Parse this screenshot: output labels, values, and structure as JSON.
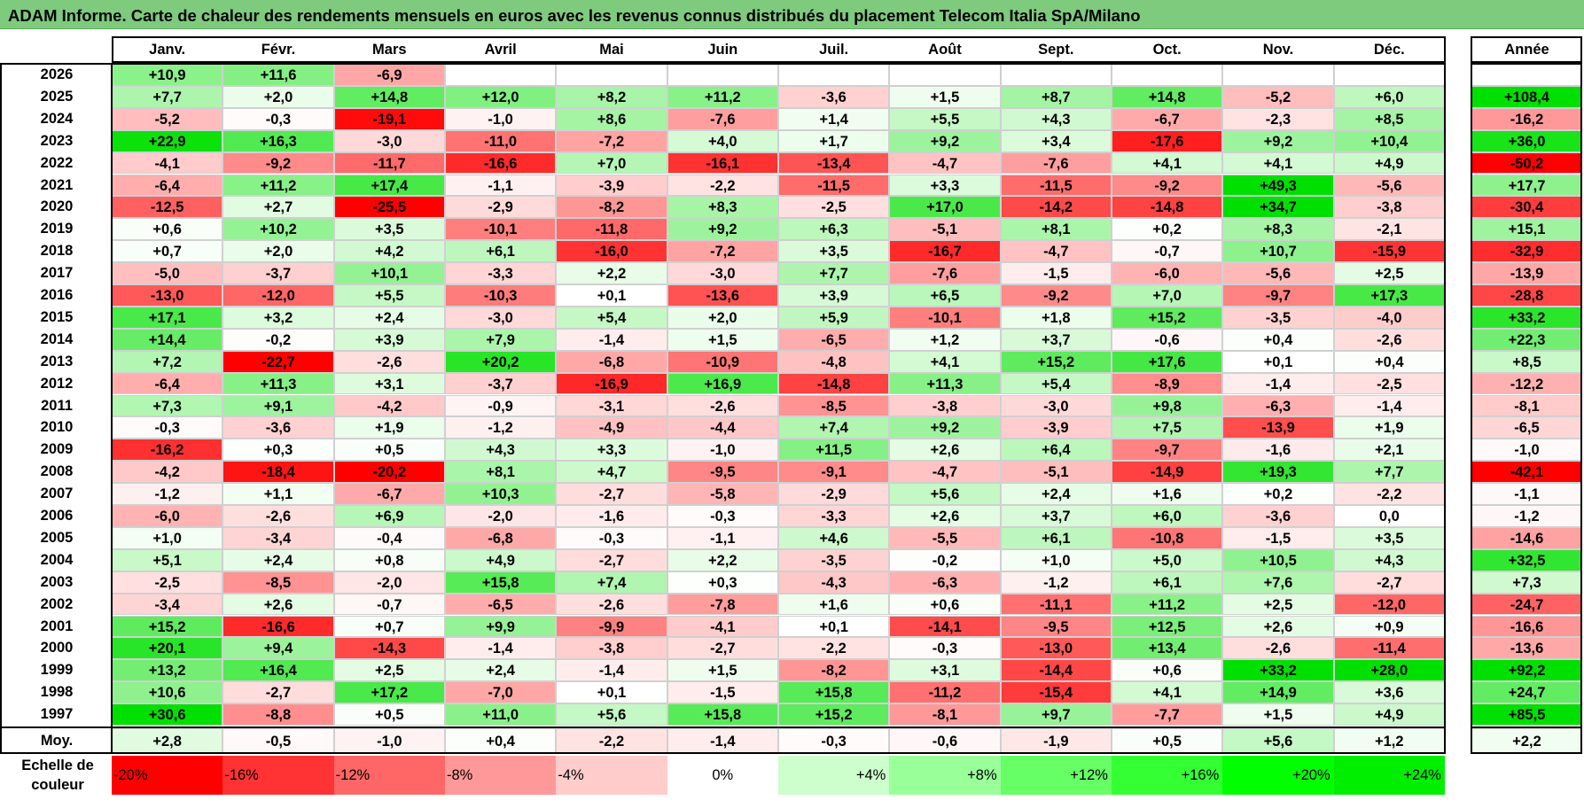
{
  "title": "ADAM Informe. Carte de chaleur des rendements mensuels en euros avec les revenus connus distribués du placement Telecom Italia SpA/Milano",
  "chart_data": {
    "type": "heatmap",
    "title": "ADAM Informe. Carte de chaleur des rendements mensuels en euros avec les revenus connus distribués du placement Telecom Italia SpA/Milano",
    "columns": [
      "Janv.",
      "Févr.",
      "Mars",
      "Avril",
      "Mai",
      "Juin",
      "Juil.",
      "Août",
      "Sept.",
      "Oct.",
      "Nov.",
      "Déc."
    ],
    "year_column_label": "Année",
    "rows": [
      {
        "year": "2026",
        "months": [
          "+10,9",
          "+11,6",
          "-6,9",
          "",
          "",
          "",
          "",
          "",
          "",
          "",
          "",
          ""
        ],
        "annual": ""
      },
      {
        "year": "2025",
        "months": [
          "+7,7",
          "+2,0",
          "+14,8",
          "+12,0",
          "+8,2",
          "+11,2",
          "-3,6",
          "+1,5",
          "+8,7",
          "+14,8",
          "-5,2",
          "+6,0"
        ],
        "annual": "+108,4"
      },
      {
        "year": "2024",
        "months": [
          "-5,2",
          "-0,3",
          "-19,1",
          "-1,0",
          "+8,6",
          "-7,6",
          "+1,4",
          "+5,5",
          "+4,3",
          "-6,7",
          "-2,3",
          "+8,5"
        ],
        "annual": "-16,2"
      },
      {
        "year": "2023",
        "months": [
          "+22,9",
          "+16,3",
          "-3,0",
          "-11,0",
          "-7,2",
          "+4,0",
          "+1,7",
          "+9,2",
          "+3,4",
          "-17,6",
          "+9,2",
          "+10,4"
        ],
        "annual": "+36,0"
      },
      {
        "year": "2022",
        "months": [
          "-4,1",
          "-9,2",
          "-11,7",
          "-16,6",
          "+7,0",
          "-16,1",
          "-13,4",
          "-4,7",
          "-7,6",
          "+4,1",
          "+4,1",
          "+4,9"
        ],
        "annual": "-50,2"
      },
      {
        "year": "2021",
        "months": [
          "-6,4",
          "+11,2",
          "+17,4",
          "-1,1",
          "-3,9",
          "-2,2",
          "-11,5",
          "+3,3",
          "-11,5",
          "-9,2",
          "+49,3",
          "-5,6"
        ],
        "annual": "+17,7"
      },
      {
        "year": "2020",
        "months": [
          "-12,5",
          "+2,7",
          "-25,5",
          "-2,9",
          "-8,2",
          "+8,3",
          "-2,5",
          "+17,0",
          "-14,2",
          "-14,8",
          "+34,7",
          "-3,8"
        ],
        "annual": "-30,4"
      },
      {
        "year": "2019",
        "months": [
          "+0,6",
          "+10,2",
          "+3,5",
          "-10,1",
          "-11,8",
          "+9,2",
          "+6,3",
          "-5,1",
          "+8,1",
          "+0,2",
          "+8,3",
          "-2,1"
        ],
        "annual": "+15,1"
      },
      {
        "year": "2018",
        "months": [
          "+0,7",
          "+2,0",
          "+4,2",
          "+6,1",
          "-16,0",
          "-7,2",
          "+3,5",
          "-16,7",
          "-4,7",
          "-0,7",
          "+10,7",
          "-15,9"
        ],
        "annual": "-32,9"
      },
      {
        "year": "2017",
        "months": [
          "-5,0",
          "-3,7",
          "+10,1",
          "-3,3",
          "+2,2",
          "-3,0",
          "+7,7",
          "-7,6",
          "-1,5",
          "-6,0",
          "-5,6",
          "+2,5"
        ],
        "annual": "-13,9"
      },
      {
        "year": "2016",
        "months": [
          "-13,0",
          "-12,0",
          "+5,5",
          "-10,3",
          "+0,1",
          "-13,6",
          "+3,9",
          "+6,5",
          "-9,2",
          "+7,0",
          "-9,7",
          "+17,3"
        ],
        "annual": "-28,8"
      },
      {
        "year": "2015",
        "months": [
          "+17,1",
          "+3,2",
          "+2,4",
          "-3,0",
          "+5,4",
          "+2,0",
          "+5,9",
          "-10,1",
          "+1,8",
          "+15,2",
          "-3,5",
          "-4,0"
        ],
        "annual": "+33,2"
      },
      {
        "year": "2014",
        "months": [
          "+14,4",
          "-0,2",
          "+3,9",
          "+7,9",
          "-1,4",
          "+1,5",
          "-6,5",
          "+1,2",
          "+3,7",
          "-0,6",
          "+0,4",
          "-2,6"
        ],
        "annual": "+22,3"
      },
      {
        "year": "2013",
        "months": [
          "+7,2",
          "-22,7",
          "-2,6",
          "+20,2",
          "-6,8",
          "-10,9",
          "-4,8",
          "+4,1",
          "+15,2",
          "+17,6",
          "+0,1",
          "+0,4"
        ],
        "annual": "+8,5"
      },
      {
        "year": "2012",
        "months": [
          "-6,4",
          "+11,3",
          "+3,1",
          "-3,7",
          "-16,9",
          "+16,9",
          "-14,8",
          "+11,3",
          "+5,4",
          "-8,9",
          "-1,4",
          "-2,5"
        ],
        "annual": "-12,2"
      },
      {
        "year": "2011",
        "months": [
          "+7,3",
          "+9,1",
          "-4,2",
          "-0,9",
          "-3,1",
          "-2,6",
          "-8,5",
          "-3,8",
          "-3,0",
          "+9,8",
          "-6,3",
          "-1,4"
        ],
        "annual": "-8,1"
      },
      {
        "year": "2010",
        "months": [
          "-0,3",
          "-3,6",
          "+1,9",
          "-1,2",
          "-4,9",
          "-4,4",
          "+7,4",
          "+9,2",
          "-3,9",
          "+7,5",
          "-13,9",
          "+1,9"
        ],
        "annual": "-6,5"
      },
      {
        "year": "2009",
        "months": [
          "-16,2",
          "+0,3",
          "+0,5",
          "+4,3",
          "+3,3",
          "-1,0",
          "+11,5",
          "+2,6",
          "+6,4",
          "-9,7",
          "-1,6",
          "+2,1"
        ],
        "annual": "-1,0"
      },
      {
        "year": "2008",
        "months": [
          "-4,2",
          "-18,4",
          "-20,2",
          "+8,1",
          "+4,7",
          "-9,5",
          "-9,1",
          "-4,7",
          "-5,1",
          "-14,9",
          "+19,3",
          "+7,7"
        ],
        "annual": "-42,1"
      },
      {
        "year": "2007",
        "months": [
          "-1,2",
          "+1,1",
          "-6,7",
          "+10,3",
          "-2,7",
          "-5,8",
          "-2,9",
          "+5,6",
          "+2,4",
          "+1,6",
          "+0,2",
          "-2,2"
        ],
        "annual": "-1,1"
      },
      {
        "year": "2006",
        "months": [
          "-6,0",
          "-2,6",
          "+6,9",
          "-2,0",
          "-1,6",
          "-0,3",
          "-3,3",
          "+2,6",
          "+3,7",
          "+6,0",
          "-3,6",
          "0,0"
        ],
        "annual": "-1,2"
      },
      {
        "year": "2005",
        "months": [
          "+1,0",
          "-3,4",
          "-0,4",
          "-6,8",
          "-0,3",
          "-1,1",
          "+4,6",
          "-5,5",
          "+6,1",
          "-10,8",
          "-1,5",
          "+3,5"
        ],
        "annual": "-14,6"
      },
      {
        "year": "2004",
        "months": [
          "+5,1",
          "+2,4",
          "+0,8",
          "+4,9",
          "-2,7",
          "+2,2",
          "-3,5",
          "-0,2",
          "+1,0",
          "+5,0",
          "+10,5",
          "+4,3"
        ],
        "annual": "+32,5"
      },
      {
        "year": "2003",
        "months": [
          "-2,5",
          "-8,5",
          "-2,0",
          "+15,8",
          "+7,4",
          "+0,3",
          "-4,3",
          "-6,3",
          "-1,2",
          "+6,1",
          "+7,6",
          "-2,7"
        ],
        "annual": "+7,3"
      },
      {
        "year": "2002",
        "months": [
          "-3,4",
          "+2,6",
          "-0,7",
          "-6,5",
          "-2,6",
          "-7,8",
          "+1,6",
          "+0,6",
          "-11,1",
          "+11,2",
          "+2,5",
          "-12,0"
        ],
        "annual": "-24,7"
      },
      {
        "year": "2001",
        "months": [
          "+15,2",
          "-16,6",
          "+0,7",
          "+9,9",
          "-9,9",
          "-4,1",
          "+0,1",
          "-14,1",
          "-9,5",
          "+12,5",
          "+2,6",
          "+0,9"
        ],
        "annual": "-16,6"
      },
      {
        "year": "2000",
        "months": [
          "+20,1",
          "+9,4",
          "-14,3",
          "-1,4",
          "-3,8",
          "-2,7",
          "-2,2",
          "-0,3",
          "-13,0",
          "+13,4",
          "-2,6",
          "-11,4"
        ],
        "annual": "-13,6"
      },
      {
        "year": "1999",
        "months": [
          "+13,2",
          "+16,4",
          "+2,5",
          "+2,4",
          "-1,4",
          "+1,5",
          "-8,2",
          "+3,1",
          "-14,4",
          "+0,6",
          "+33,2",
          "+28,0"
        ],
        "annual": "+92,2"
      },
      {
        "year": "1998",
        "months": [
          "+10,6",
          "-2,7",
          "+17,2",
          "-7,0",
          "+0,1",
          "-1,5",
          "+15,8",
          "-11,2",
          "-15,4",
          "+4,1",
          "+14,9",
          "+3,6"
        ],
        "annual": "+24,7"
      },
      {
        "year": "1997",
        "months": [
          "+30,6",
          "-8,8",
          "+0,5",
          "+11,0",
          "+5,6",
          "+15,8",
          "+15,2",
          "-8,1",
          "+9,7",
          "-7,7",
          "+1,5",
          "+4,9"
        ],
        "annual": "+85,5"
      }
    ],
    "average": {
      "label": "Moy.",
      "months": [
        "+2,8",
        "-0,5",
        "-1,0",
        "+0,4",
        "-2,2",
        "-1,4",
        "-0,3",
        "-0,6",
        "-1,9",
        "+0,5",
        "+5,6",
        "+1,2"
      ],
      "annual": "+2,2"
    },
    "legend": {
      "label": "Echelle de\ncouleur",
      "steps": [
        {
          "text": "-20%",
          "value": -20,
          "color": "#ff0000"
        },
        {
          "text": "-16%",
          "value": -16,
          "color": "#ff3333"
        },
        {
          "text": "-12%",
          "value": -12,
          "color": "#ff6666"
        },
        {
          "text": "-8%",
          "value": -8,
          "color": "#ff9999"
        },
        {
          "text": "-4%",
          "value": -4,
          "color": "#ffcccc"
        },
        {
          "text": "0%",
          "value": 0,
          "color": "#ffffff"
        },
        {
          "text": "+4%",
          "value": 4,
          "color": "#ccffcc"
        },
        {
          "text": "+8%",
          "value": 8,
          "color": "#99ff99"
        },
        {
          "text": "+12%",
          "value": 12,
          "color": "#66ff66"
        },
        {
          "text": "+16%",
          "value": 16,
          "color": "#33ff33"
        },
        {
          "text": "+20%",
          "value": 20,
          "color": "#00ff00"
        },
        {
          "text": "+24%",
          "value": 24,
          "color": "#00ee00"
        }
      ]
    },
    "color_scale": {
      "monthly_min": -20,
      "monthly_max": 24,
      "annual_min": -40,
      "annual_max": 40,
      "negative_color": "#ff0000",
      "positive_color": "#00e000"
    }
  }
}
